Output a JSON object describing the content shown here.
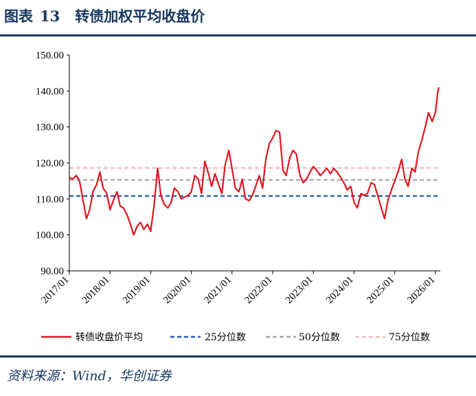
{
  "figure": {
    "label": "图表",
    "number": "13",
    "title": "转债加权平均收盘价"
  },
  "source": "资料来源：Wind，华创证券",
  "chart_data": {
    "type": "line",
    "ylim": [
      90,
      150
    ],
    "ytick_labels": [
      "150.00",
      "140.00",
      "130.00",
      "120.00",
      "110.00",
      "100.00",
      "90.00"
    ],
    "yticks": [
      150,
      140,
      130,
      120,
      110,
      100,
      90
    ],
    "x_range": [
      "2017-01",
      "2026-02"
    ],
    "xtick_labels": [
      "2017/01",
      "2018/01",
      "2019/01",
      "2020/01",
      "2021/01",
      "2022/01",
      "2023/01",
      "2024/01",
      "2025/01",
      "2026/01"
    ],
    "series": [
      {
        "name": "转债收盘价平均",
        "color": "#e0151f",
        "style": "solid",
        "x": [
          2017.0,
          2017.08,
          2017.17,
          2017.25,
          2017.33,
          2017.42,
          2017.5,
          2017.58,
          2017.67,
          2017.75,
          2017.83,
          2017.92,
          2018.0,
          2018.08,
          2018.17,
          2018.25,
          2018.33,
          2018.42,
          2018.5,
          2018.58,
          2018.67,
          2018.75,
          2018.83,
          2018.92,
          2019.0,
          2019.08,
          2019.17,
          2019.25,
          2019.33,
          2019.42,
          2019.5,
          2019.58,
          2019.67,
          2019.75,
          2019.83,
          2019.92,
          2020.0,
          2020.08,
          2020.17,
          2020.25,
          2020.33,
          2020.42,
          2020.5,
          2020.58,
          2020.67,
          2020.75,
          2020.83,
          2020.92,
          2021.0,
          2021.08,
          2021.17,
          2021.25,
          2021.33,
          2021.42,
          2021.5,
          2021.58,
          2021.67,
          2021.75,
          2021.83,
          2021.92,
          2022.0,
          2022.08,
          2022.17,
          2022.25,
          2022.33,
          2022.42,
          2022.5,
          2022.58,
          2022.67,
          2022.75,
          2022.83,
          2022.92,
          2023.0,
          2023.08,
          2023.17,
          2023.25,
          2023.33,
          2023.42,
          2023.5,
          2023.58,
          2023.67,
          2023.75,
          2023.83,
          2023.92,
          2024.0,
          2024.08,
          2024.17,
          2024.25,
          2024.33,
          2024.42,
          2024.5,
          2024.58,
          2024.67,
          2024.75,
          2024.83,
          2024.92,
          2025.0,
          2025.08,
          2025.17,
          2025.25,
          2025.33,
          2025.42,
          2025.5,
          2025.58,
          2025.67,
          2025.75,
          2025.83,
          2025.92,
          2026.0,
          2026.05,
          2026.08
        ],
        "values": [
          116.0,
          115.5,
          116.5,
          115.0,
          110.0,
          104.5,
          107.0,
          112.0,
          114.0,
          117.5,
          113.0,
          111.5,
          107.0,
          109.5,
          112.0,
          108.0,
          107.5,
          105.5,
          103.0,
          100.0,
          102.5,
          103.5,
          101.5,
          103.0,
          101.0,
          108.0,
          118.5,
          111.0,
          108.5,
          107.5,
          109.0,
          113.0,
          112.0,
          110.0,
          110.5,
          111.0,
          112.0,
          116.5,
          115.5,
          111.5,
          120.5,
          117.0,
          113.5,
          117.0,
          114.0,
          111.5,
          119.5,
          123.5,
          118.5,
          113.0,
          112.0,
          115.5,
          110.0,
          109.5,
          111.0,
          113.5,
          116.5,
          113.0,
          121.0,
          125.5,
          127.0,
          129.0,
          128.5,
          118.0,
          116.5,
          121.5,
          123.5,
          122.5,
          116.5,
          114.5,
          115.5,
          117.5,
          119.0,
          118.0,
          116.5,
          117.5,
          118.5,
          117.0,
          118.5,
          117.5,
          116.0,
          114.5,
          112.5,
          113.5,
          109.0,
          107.5,
          111.5,
          111.0,
          111.5,
          114.5,
          114.0,
          111.0,
          107.5,
          104.5,
          109.5,
          112.5,
          115.0,
          117.5,
          121.0,
          115.5,
          113.5,
          118.5,
          117.5,
          123.0,
          126.5,
          130.0,
          134.0,
          131.5,
          134.0,
          139.0,
          141.0
        ]
      },
      {
        "name": "25分位数",
        "color": "#1f5fae",
        "style": "dashed",
        "constant": 110.8
      },
      {
        "name": "50分位数",
        "color": "#a6a6a6",
        "style": "dashed",
        "constant": 115.3
      },
      {
        "name": "75分位数",
        "color": "#f2b9b9",
        "style": "dashed",
        "constant": 118.6
      }
    ],
    "legend_position": "bottom",
    "grid": false
  }
}
